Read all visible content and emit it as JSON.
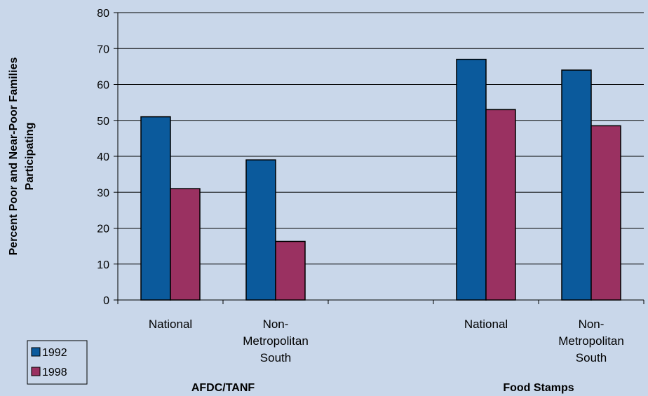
{
  "chart_data": {
    "type": "bar",
    "ylabel_lines": [
      "Percent Poor and Near-Poor Families",
      "Participating"
    ],
    "ylim": [
      0,
      80
    ],
    "yticks": [
      0,
      10,
      20,
      30,
      40,
      50,
      60,
      70,
      80
    ],
    "grid": true,
    "legend_position": "bottom-left",
    "categories": [
      {
        "label_lines": [
          "National"
        ]
      },
      {
        "label_lines": [
          "Non-",
          "Metropolitan",
          "South"
        ]
      },
      {
        "label_lines": []
      },
      {
        "label_lines": [
          "National"
        ]
      },
      {
        "label_lines": [
          "Non-",
          "Metropolitan",
          "South"
        ]
      }
    ],
    "groups": [
      {
        "label": "AFDC/TANF",
        "categories": [
          0,
          1
        ]
      },
      {
        "label": "Food Stamps",
        "categories": [
          3,
          4
        ]
      }
    ],
    "series": [
      {
        "name": "1992",
        "color": "#0b5a9c",
        "values": [
          51,
          39,
          null,
          67,
          64
        ]
      },
      {
        "name": "1998",
        "color": "#9a3161",
        "values": [
          31,
          16.3,
          null,
          53,
          48.5
        ]
      }
    ]
  }
}
